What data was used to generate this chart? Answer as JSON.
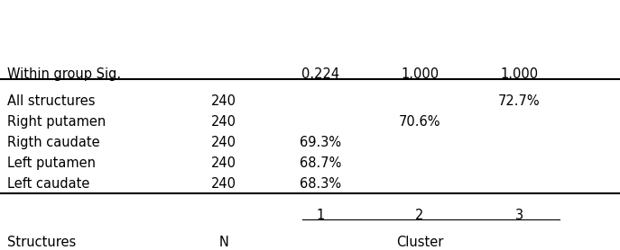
{
  "title_left": "Structures",
  "title_n": "N",
  "cluster_header": "Cluster",
  "cluster_subheaders": [
    "1",
    "2",
    "3"
  ],
  "rows": [
    {
      "structure": "Left caudate",
      "n": "240",
      "c1": "68.3%",
      "c2": "",
      "c3": ""
    },
    {
      "structure": "Left putamen",
      "n": "240",
      "c1": "68.7%",
      "c2": "",
      "c3": ""
    },
    {
      "structure": "Rigth caudate",
      "n": "240",
      "c1": "69.3%",
      "c2": "",
      "c3": ""
    },
    {
      "structure": "Right putamen",
      "n": "240",
      "c1": "",
      "c2": "70.6%",
      "c3": ""
    },
    {
      "structure": "All structures",
      "n": "240",
      "c1": "",
      "c2": "",
      "c3": "72.7%"
    }
  ],
  "footer_label": "Within group Sig.",
  "footer_values": [
    "0.224",
    "1.000",
    "1.000"
  ],
  "bg_color": "#ffffff",
  "text_color": "#000000",
  "font_size": 10.5
}
